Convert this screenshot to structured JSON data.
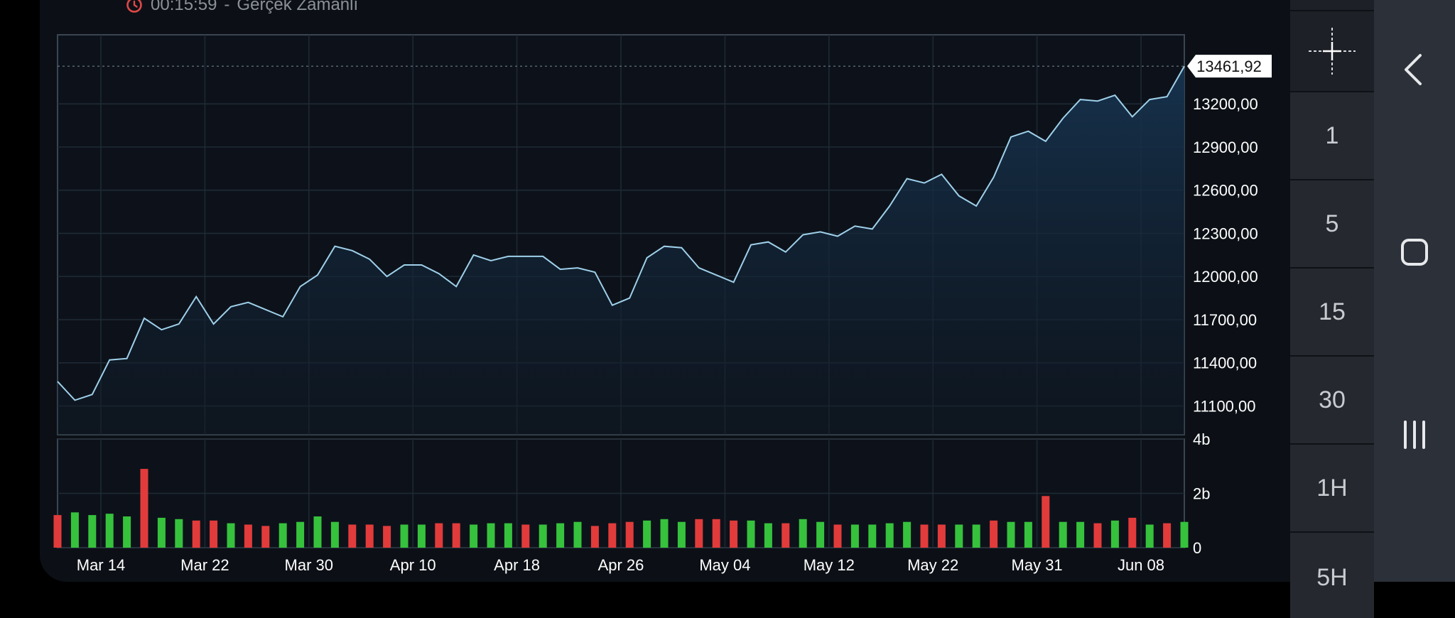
{
  "header": {
    "time": "00:15:59",
    "separator": "-",
    "mode": "Gerçek Zamanlı"
  },
  "timeframes": [
    "1",
    "5",
    "15",
    "30",
    "1H",
    "5H"
  ],
  "colors": {
    "line": "#9fd0ea",
    "up_volume": "#36c23c",
    "down_volume": "#e23b3b",
    "background": "#0c1016",
    "price_tag": "#ffffff"
  },
  "icons": {
    "clock": "clock-icon",
    "crosshair": "crosshair-icon",
    "back": "back-chevron-icon",
    "home": "home-square-icon",
    "recents": "recents-bars-icon",
    "status_dot": "status-dot-icon"
  },
  "chart_data": [
    {
      "type": "area",
      "title": "",
      "xlabel": "",
      "ylabel": "",
      "ylim": [
        10900,
        13680
      ],
      "grid": true,
      "y_ticks": [
        "11100,00",
        "11400,00",
        "11700,00",
        "12000,00",
        "12300,00",
        "12600,00",
        "12900,00",
        "13200,00"
      ],
      "x_ticks": [
        "Mar 14",
        "Mar 22",
        "Mar 30",
        "Apr 10",
        "Apr 18",
        "Apr 26",
        "May 04",
        "May 12",
        "May 22",
        "May 31",
        "Jun 08"
      ],
      "x_tick_index": [
        2.5,
        8.5,
        14.5,
        20.5,
        26.5,
        32.5,
        38.5,
        44.5,
        50.5,
        56.5,
        62.5
      ],
      "last_price": 13461.92,
      "last_price_label": "13461,92",
      "series": [
        {
          "values": [
            11270,
            11140,
            11180,
            11420,
            11430,
            11710,
            11630,
            11670,
            11860,
            11670,
            11790,
            11820,
            11770,
            11720,
            11930,
            12010,
            12210,
            12180,
            12120,
            12000,
            12080,
            12080,
            12020,
            11930,
            12150,
            12110,
            12140,
            12140,
            12140,
            12050,
            12060,
            12030,
            11800,
            11850,
            12130,
            12210,
            12200,
            12060,
            12010,
            11960,
            12220,
            12240,
            12170,
            12290,
            12310,
            12280,
            12350,
            12330,
            12490,
            12680,
            12650,
            12710,
            12560,
            12490,
            12690,
            12970,
            13010,
            12940,
            13100,
            13230,
            13220,
            13260,
            13110,
            13230,
            13250,
            13461.92
          ]
        }
      ]
    },
    {
      "type": "bar",
      "title": "",
      "xlabel": "",
      "ylabel": "",
      "ylim": [
        0,
        4
      ],
      "y_ticks": [
        "0",
        "2b",
        "4b"
      ],
      "series": [
        {
          "name": "",
          "values": [
            1.2,
            1.3,
            1.2,
            1.25,
            1.15,
            2.9,
            1.1,
            1.05,
            1.0,
            1.0,
            0.9,
            0.85,
            0.8,
            0.9,
            0.95,
            1.15,
            0.95,
            0.85,
            0.85,
            0.8,
            0.85,
            0.85,
            0.9,
            0.9,
            0.85,
            0.9,
            0.9,
            0.85,
            0.85,
            0.9,
            0.95,
            0.8,
            0.9,
            0.95,
            1.0,
            1.05,
            0.95,
            1.05,
            1.05,
            1.0,
            1.0,
            0.9,
            0.9,
            1.05,
            0.95,
            0.85,
            0.85,
            0.85,
            0.9,
            0.95,
            0.85,
            0.85,
            0.85,
            0.85,
            1.0,
            0.95,
            0.95,
            1.9,
            0.95,
            0.95,
            0.9,
            1.0,
            1.1,
            0.85,
            0.9,
            0.95
          ],
          "direction": [
            "d",
            "u",
            "u",
            "u",
            "u",
            "d",
            "u",
            "u",
            "d",
            "d",
            "u",
            "d",
            "d",
            "u",
            "u",
            "u",
            "u",
            "d",
            "d",
            "d",
            "u",
            "u",
            "d",
            "d",
            "u",
            "u",
            "u",
            "d",
            "u",
            "u",
            "u",
            "d",
            "d",
            "d",
            "u",
            "u",
            "u",
            "d",
            "d",
            "d",
            "u",
            "u",
            "d",
            "u",
            "u",
            "d",
            "u",
            "u",
            "u",
            "u",
            "d",
            "d",
            "u",
            "u",
            "d",
            "u",
            "u",
            "d",
            "u",
            "u",
            "d",
            "u",
            "d",
            "u",
            "d",
            "u"
          ]
        }
      ]
    }
  ]
}
